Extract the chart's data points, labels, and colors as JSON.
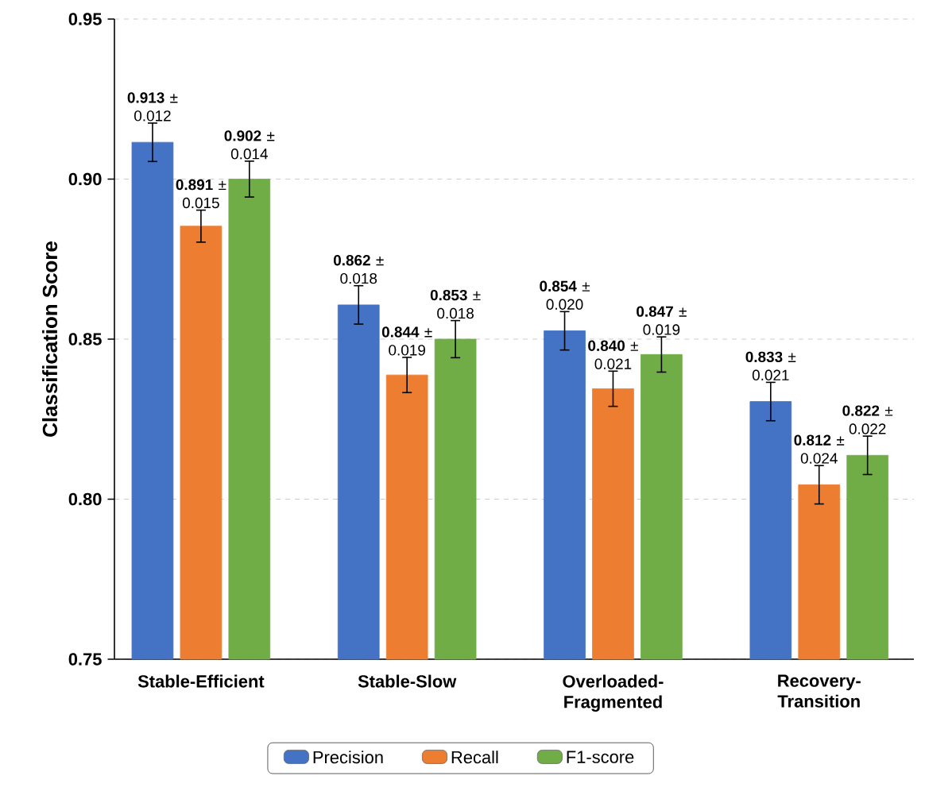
{
  "chart_data": {
    "type": "bar",
    "ylabel": "Classification Score",
    "categories": [
      "Stable-Efficient",
      "Stable-Slow",
      "Overloaded-Fragmented",
      "Recovery-Transition"
    ],
    "series": [
      {
        "name": "Precision",
        "color": "#4472c4",
        "values": [
          0.9115,
          0.8607,
          0.8526,
          0.8305
        ],
        "errors": [
          0.006,
          0.006,
          0.006,
          0.006
        ],
        "value_labels": [
          "**0.913** ± 0.012",
          "**0.862** ± 0.018",
          "**0.854** ± 0.020",
          "**0.833** ± 0.021"
        ]
      },
      {
        "name": "Recall",
        "color": "#ed7d31",
        "values": [
          0.8853,
          0.8388,
          0.8345,
          0.8045
        ],
        "errors": [
          0.005,
          0.0055,
          0.0055,
          0.006
        ],
        "value_labels": [
          "**0.891** ± 0.015",
          "**0.844** ± 0.019",
          "**0.840** ± 0.021",
          "**0.812** ± 0.024"
        ]
      },
      {
        "name": "F1-score",
        "color": "#70ad47",
        "values": [
          0.9,
          0.85,
          0.8452,
          0.8137
        ],
        "errors": [
          0.0056,
          0.0058,
          0.0055,
          0.006
        ],
        "value_labels": [
          "**0.902** ± 0.014",
          "**0.853** ± 0.018",
          "**0.847** ± 0.019",
          "**0.822** ± 0.022"
        ]
      }
    ],
    "ylim": [
      0.75,
      0.95
    ],
    "yticks": [
      0.75,
      {
        "value": 0.8,
        "label": "0.80"
      },
      0.85,
      {
        "value": 0.9,
        "label": "0.90"
      },
      0.95
    ],
    "grid": "y",
    "legend": "bottom"
  }
}
